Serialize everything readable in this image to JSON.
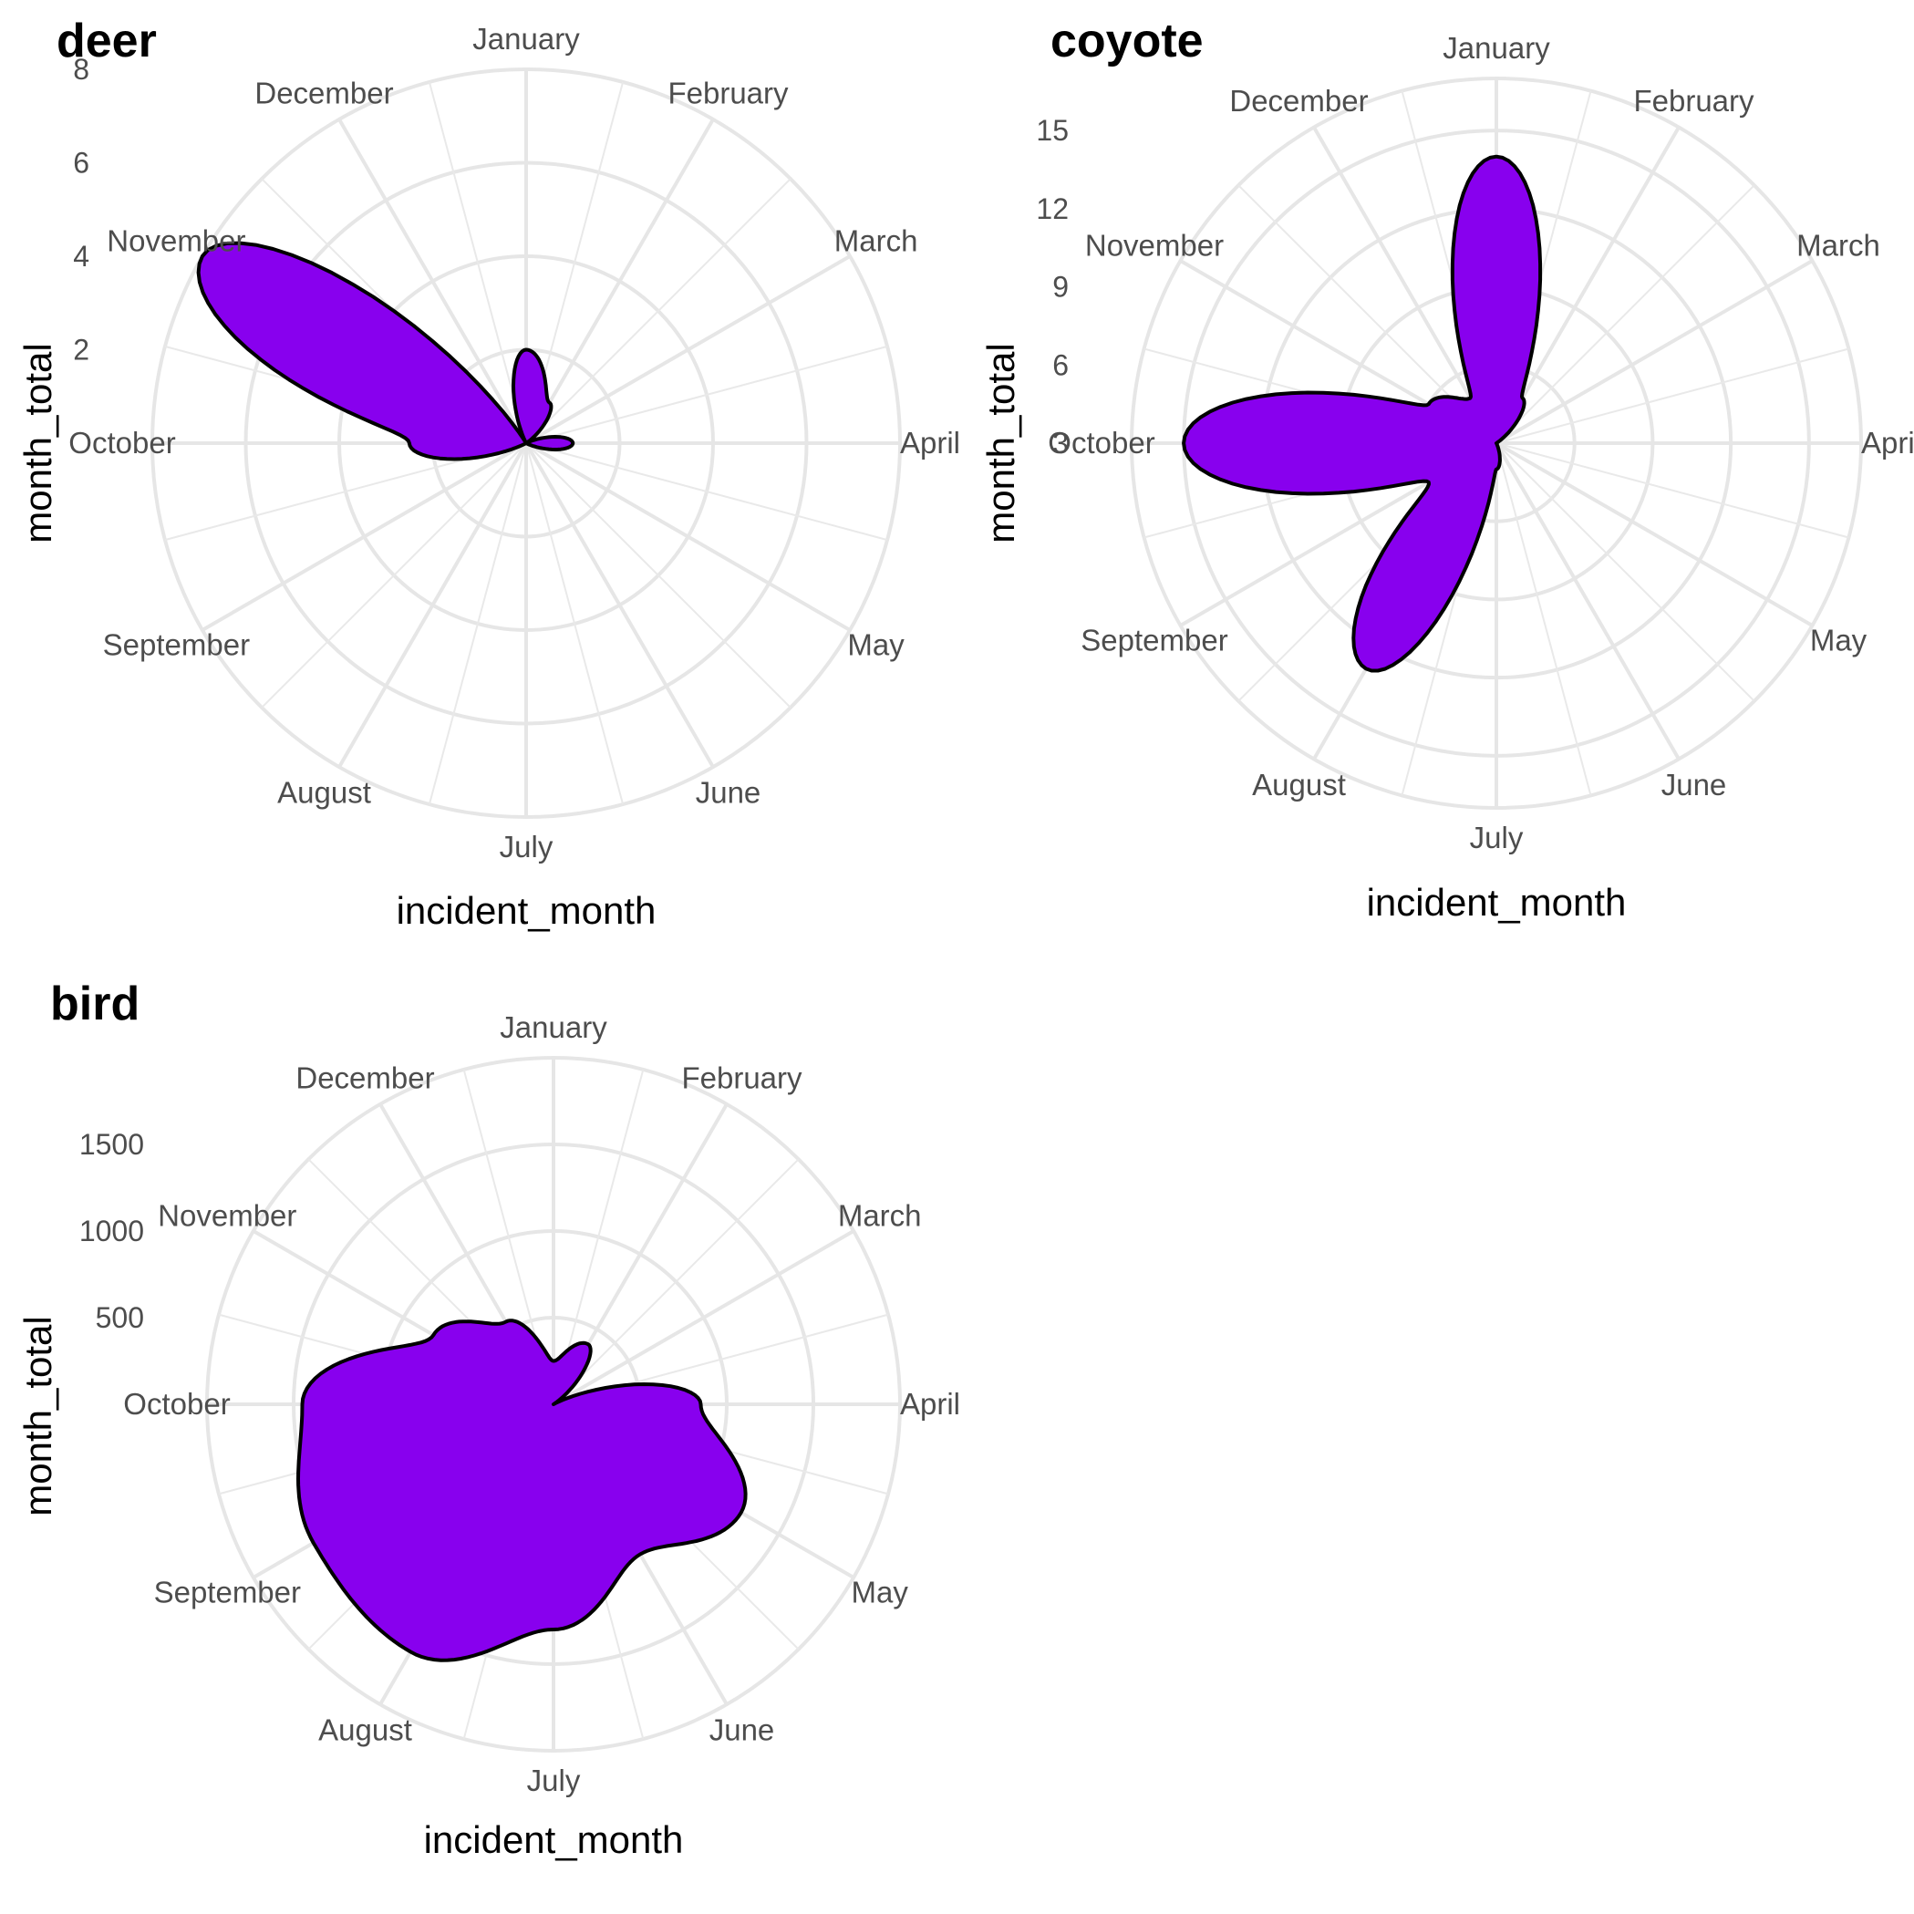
{
  "chart_data": [
    {
      "type": "area",
      "projection": "polar",
      "title": "deer",
      "xlabel": "incident_month",
      "ylabel": "month_total",
      "categories": [
        "January",
        "February",
        "March",
        "April",
        "May",
        "June",
        "July",
        "August",
        "September",
        "October",
        "November",
        "December"
      ],
      "values": [
        2,
        1,
        0,
        1,
        0,
        0,
        0,
        0,
        0,
        2.5,
        8,
        0
      ],
      "ylim": [
        0,
        8
      ],
      "yticks": [
        2,
        4,
        6,
        8
      ],
      "fill": "#8800ee",
      "grid": true
    },
    {
      "type": "area",
      "projection": "polar",
      "title": "coyote",
      "xlabel": "incident_month",
      "ylabel": "month_total",
      "categories": [
        "January",
        "February",
        "March",
        "April",
        "May",
        "June",
        "July",
        "August",
        "September",
        "October",
        "November",
        "December"
      ],
      "values": [
        14,
        5,
        0,
        3,
        0,
        0,
        4,
        13,
        6,
        15,
        6,
        5
      ],
      "ylim": [
        3,
        17
      ],
      "yticks": [
        3,
        6,
        9,
        12,
        15
      ],
      "fill": "#8800ee",
      "grid": true
    },
    {
      "type": "area",
      "projection": "polar",
      "title": "bird",
      "xlabel": "incident_month",
      "ylabel": "month_total",
      "categories": [
        "January",
        "February",
        "March",
        "April",
        "May",
        "June",
        "July",
        "August",
        "September",
        "October",
        "November",
        "December"
      ],
      "values": [
        250,
        400,
        0,
        850,
        1250,
        1000,
        1300,
        1650,
        1600,
        1450,
        800,
        550
      ],
      "ylim": [
        0,
        2000
      ],
      "yticks": [
        500,
        1000,
        1500
      ],
      "fill": "#8800ee",
      "grid": true
    }
  ]
}
